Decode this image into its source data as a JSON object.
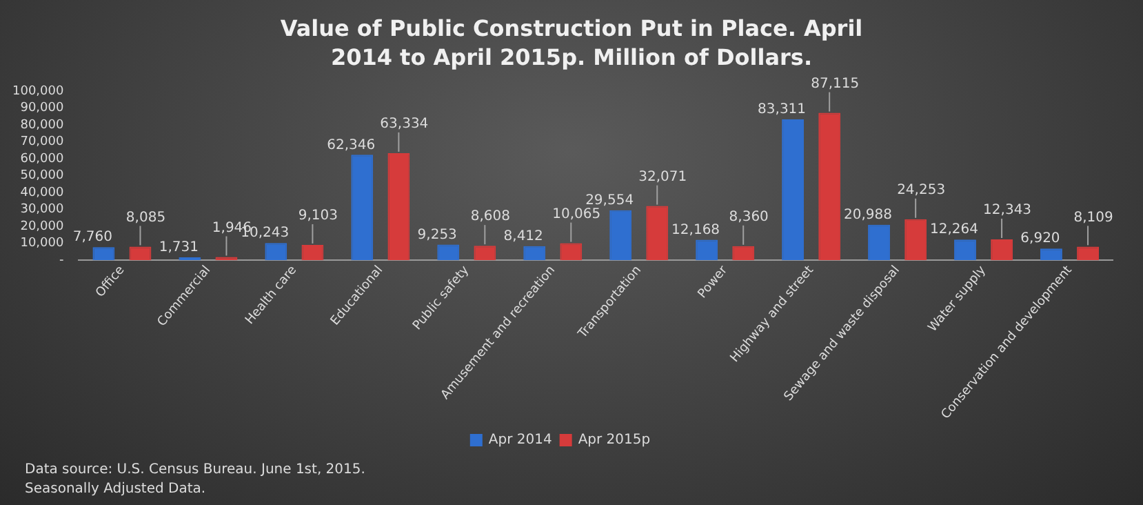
{
  "chart_data": {
    "type": "bar",
    "title": "Value of Public Construction Put in Place. April 2014 to April 2015p. Million of Dollars.",
    "categories": [
      "Office",
      "Commercial",
      "Health care",
      "Educational",
      "Public safety",
      "Amusement and recreation",
      "Transportation",
      "Power",
      "Highway and street",
      "Sewage and waste disposal",
      "Water supply",
      "Conservation and development"
    ],
    "series": [
      {
        "name": "Apr 2014",
        "color": "#2f6fd0",
        "values": [
          7760,
          1731,
          10243,
          62346,
          9253,
          8412,
          29554,
          12168,
          83311,
          20988,
          12264,
          6920
        ],
        "value_labels": [
          "7,760",
          "1,731",
          "10,243",
          "62,346",
          "9,253",
          "8,412",
          "29,554",
          "12,168",
          "83,311",
          "20,988",
          "12,264",
          "6,920"
        ]
      },
      {
        "name": "Apr 2015p",
        "color": "#d63b3b",
        "values": [
          8085,
          1946,
          9103,
          63334,
          8608,
          10065,
          32071,
          8360,
          87115,
          24253,
          12343,
          8109
        ],
        "value_labels": [
          "8,085",
          "1,946",
          "9,103",
          "63,334",
          "8,608",
          "10,065",
          "32,071",
          "8,360",
          "87,115",
          "24,253",
          "12,343",
          "8,109"
        ]
      }
    ],
    "ylim": [
      0,
      100000
    ],
    "yticks": [
      {
        "value": 0,
        "label": "-"
      },
      {
        "value": 10000,
        "label": "10,000"
      },
      {
        "value": 20000,
        "label": "20,000"
      },
      {
        "value": 30000,
        "label": "30,000"
      },
      {
        "value": 40000,
        "label": "40,000"
      },
      {
        "value": 50000,
        "label": "50,000"
      },
      {
        "value": 60000,
        "label": "60,000"
      },
      {
        "value": 70000,
        "label": "70,000"
      },
      {
        "value": 80000,
        "label": "80,000"
      },
      {
        "value": 90000,
        "label": "90,000"
      },
      {
        "value": 100000,
        "label": "100,000"
      }
    ],
    "grid": false,
    "legend": "bottom",
    "annotations": [
      "Data source: U.S. Census Bureau. June 1st, 2015.",
      "Seasonally Adjusted Data."
    ]
  }
}
